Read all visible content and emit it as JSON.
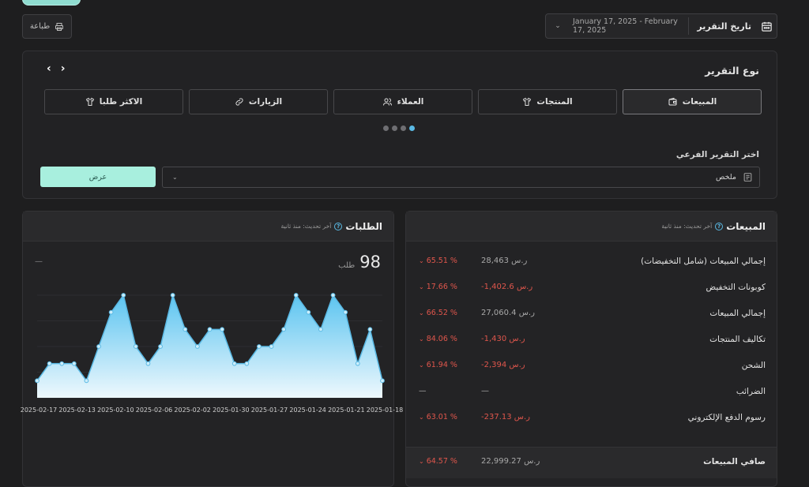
{
  "toolbar": {
    "print_label": "طباعة"
  },
  "date_filter": {
    "label": "تاريخ التقرير",
    "range": "January 17, 2025 - February 17, 2025"
  },
  "report_type": {
    "title": "نوع التقرير",
    "cards": [
      {
        "label": "المبيعات",
        "icon": "wallet-icon",
        "active": true
      },
      {
        "label": "المنتجات",
        "icon": "shirt-icon",
        "active": false
      },
      {
        "label": "العملاء",
        "icon": "users-icon",
        "active": false
      },
      {
        "label": "الزيارات",
        "icon": "link-icon",
        "active": false
      },
      {
        "label": "الاكثر طلبا",
        "icon": "shirt-icon",
        "active": false
      }
    ],
    "sub_report_label": "اختر التقرير الفرعي",
    "sub_report_value": "ملخص",
    "show_button": "عرض"
  },
  "orders": {
    "title": "الطلبات",
    "updated": "آخر تحديث: منذ ثانية",
    "total": "98",
    "unit": "طلب",
    "dash": "—"
  },
  "sales": {
    "title": "المبيعات",
    "updated": "آخر تحديث: منذ ثانية",
    "rows": [
      {
        "label": "إجمالي المبيعات (شامل التخفيضات)",
        "value": "28,463 ر.س",
        "change": "65.51 %",
        "negative": false
      },
      {
        "label": "كوبونات التخفيض",
        "value": "-1,402.6 ر.س",
        "change": "17.66 %",
        "negative": true
      },
      {
        "label": "إجمالي المبيعات",
        "value": "27,060.4 ر.س",
        "change": "66.52 %",
        "negative": false
      },
      {
        "label": "تكاليف المنتجات",
        "value": "-1,430 ر.س",
        "change": "84.06 %",
        "negative": true
      },
      {
        "label": "الشحن",
        "value": "-2,394 ر.س",
        "change": "61.94 %",
        "negative": true
      },
      {
        "label": "الضرائب",
        "value": "—",
        "change": "—",
        "negative": false
      },
      {
        "label": "رسوم الدفع الإلكتروني",
        "value": "-237.13 ر.س",
        "change": "63.01 %",
        "negative": true
      }
    ],
    "net": {
      "label": "صافي المبيعات",
      "value": "22,999.27 ر.س",
      "change": "64.57 %"
    }
  },
  "chart_data": {
    "type": "area",
    "x_tick_labels": [
      "2025-02-17",
      "2025-02-13",
      "2025-02-10",
      "2025-02-06",
      "2025-02-02",
      "2025-01-30",
      "2025-01-27",
      "2025-01-24",
      "2025-01-21",
      "2025-01-18"
    ],
    "values": [
      1,
      2,
      2,
      2,
      1,
      3,
      5,
      6,
      3,
      2,
      3,
      6,
      4,
      3,
      4,
      4,
      2,
      2,
      3,
      3,
      4,
      6,
      5,
      4,
      6,
      5,
      2,
      4,
      1
    ],
    "ylim": [
      0,
      6
    ],
    "color": "#5ab9e4"
  }
}
